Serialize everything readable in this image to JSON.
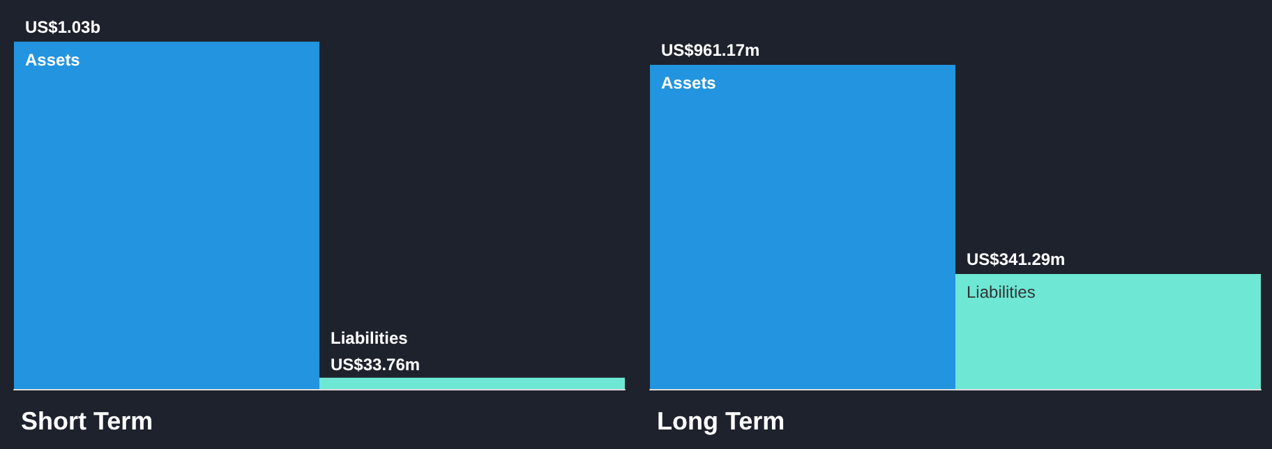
{
  "chart_data": [
    {
      "type": "bar",
      "title": "Short Term",
      "categories": [
        "Assets",
        "Liabilities"
      ],
      "values": [
        1030000000,
        33760000
      ],
      "colors": [
        "#2394df",
        "#6ee7d5"
      ],
      "value_labels": [
        "US$1.03b",
        "US$33.76m"
      ],
      "tick_labels": false
    },
    {
      "type": "bar",
      "title": "Long Term",
      "categories": [
        "Assets",
        "Liabilities"
      ],
      "values": [
        961170000,
        341290000
      ],
      "colors": [
        "#2394df",
        "#6ee7d5"
      ],
      "value_labels": [
        "US$961.17m",
        "US$341.29m"
      ],
      "tick_labels": false
    }
  ]
}
